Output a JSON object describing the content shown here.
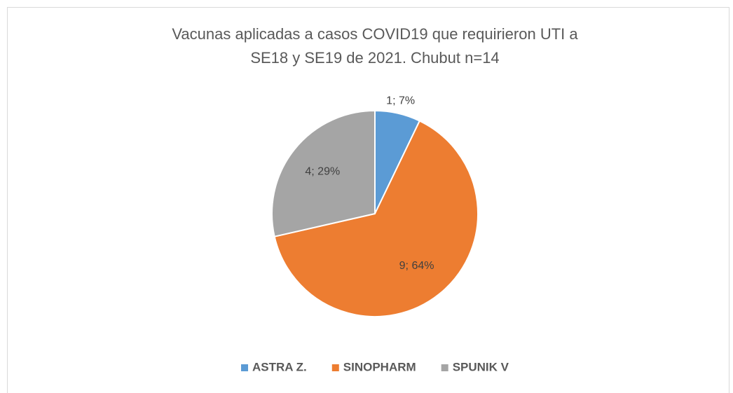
{
  "chart_data": {
    "type": "pie",
    "title": [
      "Vacunas aplicadas a casos COVID19  que requirieron UTI a",
      "SE18 y SE19  de 2021. Chubut n=14"
    ],
    "categories": [
      "ASTRA Z.",
      "SINOPHARM",
      "SPUNIK V"
    ],
    "values": [
      1,
      9,
      4
    ],
    "value_labels": [
      "1; 7%",
      "9; 64%",
      "4; 29%"
    ],
    "colors": [
      "#5b9bd5",
      "#ed7d31",
      "#a5a5a5"
    ],
    "legend": "bottom"
  }
}
